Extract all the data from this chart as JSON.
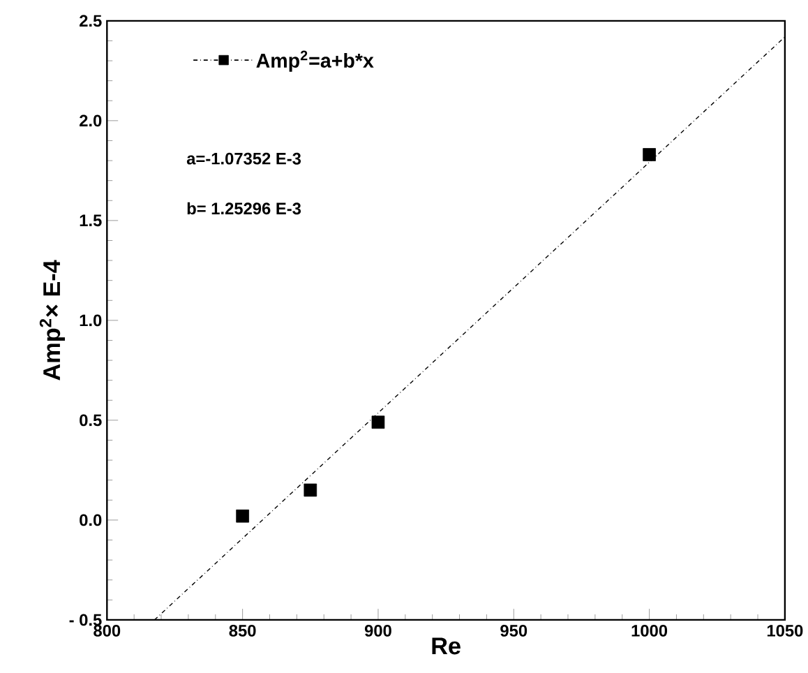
{
  "chart_data": {
    "type": "scatter",
    "xlabel": "Re",
    "ylabel": "Amp$^{2}$× E-4",
    "xlim": [
      800,
      1050
    ],
    "xticks": [
      800,
      850,
      900,
      950,
      1000,
      1050
    ],
    "ylim": [
      -0.5,
      2.5
    ],
    "yticks": [
      {
        "value": -0.5,
        "label": "- 0.5"
      },
      {
        "value": 0,
        "label": "0.0"
      },
      {
        "value": 0.5,
        "label": "0.5"
      },
      {
        "value": 1.0,
        "label": "1.0"
      },
      {
        "value": 1.5,
        "label": "1.5"
      },
      {
        "value": 2.0,
        "label": "2.0"
      },
      {
        "value": 2.5,
        "label": "2.5"
      }
    ],
    "series": [
      {
        "name": "Amp$^{2}$=a+b*x",
        "marker": "square",
        "color": "#000000",
        "x": [
          850,
          875,
          900,
          1000
        ],
        "values": [
          0.02,
          0.15,
          0.49,
          1.83
        ]
      },
      {
        "type": "line",
        "line_style": "dashdot",
        "color": "#000000",
        "x": [
          817.5,
          1050
        ],
        "values": [
          -0.5,
          2.42
        ]
      }
    ],
    "annotations": [
      "a=-1.07352 E-3",
      "b= 1.25296 E-3"
    ],
    "legend": "top left",
    "grid": false
  }
}
